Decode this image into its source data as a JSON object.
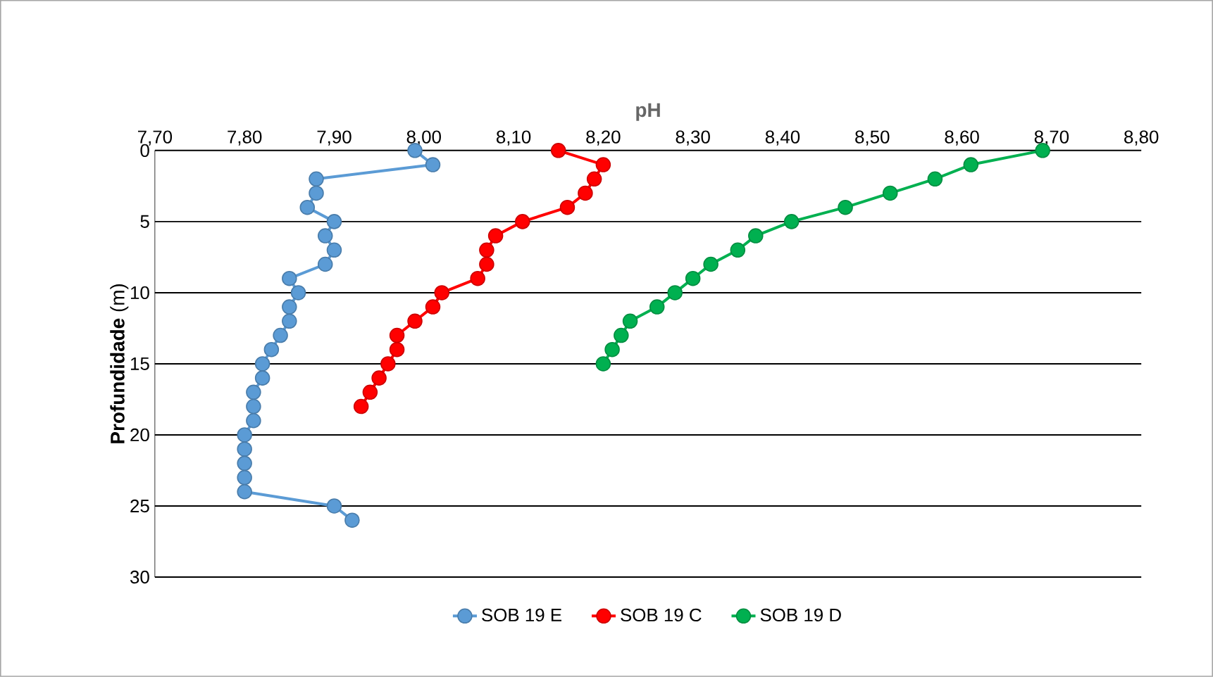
{
  "chart_data": {
    "type": "line",
    "xlabel": "pH",
    "ylabel": "**Profundidade** (m)",
    "xlim": [
      7.7,
      8.8
    ],
    "xticks": [
      {
        "value": 7.7,
        "label": "7,70"
      },
      {
        "value": 7.8,
        "label": "7,80"
      },
      {
        "value": 7.9,
        "label": "7,90"
      },
      {
        "value": 8.0,
        "label": "8,00"
      },
      {
        "value": 8.1,
        "label": "8,10"
      },
      {
        "value": 8.2,
        "label": "8,20"
      },
      {
        "value": 8.3,
        "label": "8,30"
      },
      {
        "value": 8.4,
        "label": "8,40"
      },
      {
        "value": 8.5,
        "label": "8,50"
      },
      {
        "value": 8.6,
        "label": "8,60"
      },
      {
        "value": 8.7,
        "label": "8,70"
      },
      {
        "value": 8.8,
        "label": "8,80"
      }
    ],
    "ylim": [
      30,
      0
    ],
    "yticks": [
      0,
      5,
      10,
      15,
      20,
      25,
      30
    ],
    "grid": "y",
    "legend": "bottom",
    "marker": "circle",
    "line_style": "solid",
    "series": [
      {
        "name": "SOB 19 E",
        "color": "#5b9bd5",
        "x": [
          7.99,
          8.01,
          7.88,
          7.88,
          7.87,
          7.9,
          7.89,
          7.9,
          7.89,
          7.85,
          7.86,
          7.85,
          7.85,
          7.84,
          7.83,
          7.82,
          7.82,
          7.81,
          7.81,
          7.81,
          7.8,
          7.8,
          7.8,
          7.8,
          7.8,
          7.9,
          7.92
        ],
        "values": [
          0,
          1,
          2,
          3,
          4,
          5,
          6,
          7,
          8,
          9,
          10,
          11,
          12,
          13,
          14,
          15,
          16,
          17,
          18,
          19,
          20,
          21,
          22,
          23,
          24,
          25,
          26
        ]
      },
      {
        "name": "SOB 19 C",
        "color": "#ff0000",
        "x": [
          8.15,
          8.2,
          8.19,
          8.18,
          8.16,
          8.11,
          8.08,
          8.07,
          8.07,
          8.06,
          8.02,
          8.01,
          7.99,
          7.97,
          7.97,
          7.96,
          7.95,
          7.94,
          7.93
        ],
        "values": [
          0,
          1,
          2,
          3,
          4,
          5,
          6,
          7,
          8,
          9,
          10,
          11,
          12,
          13,
          14,
          15,
          16,
          17,
          18
        ]
      },
      {
        "name": "SOB 19 D",
        "color": "#00b050",
        "x": [
          8.69,
          8.61,
          8.57,
          8.52,
          8.47,
          8.41,
          8.37,
          8.35,
          8.32,
          8.3,
          8.28,
          8.26,
          8.23,
          8.22,
          8.21,
          8.2
        ],
        "values": [
          0,
          1,
          2,
          3,
          4,
          5,
          6,
          7,
          8,
          9,
          10,
          11,
          12,
          13,
          14,
          15
        ]
      }
    ]
  }
}
